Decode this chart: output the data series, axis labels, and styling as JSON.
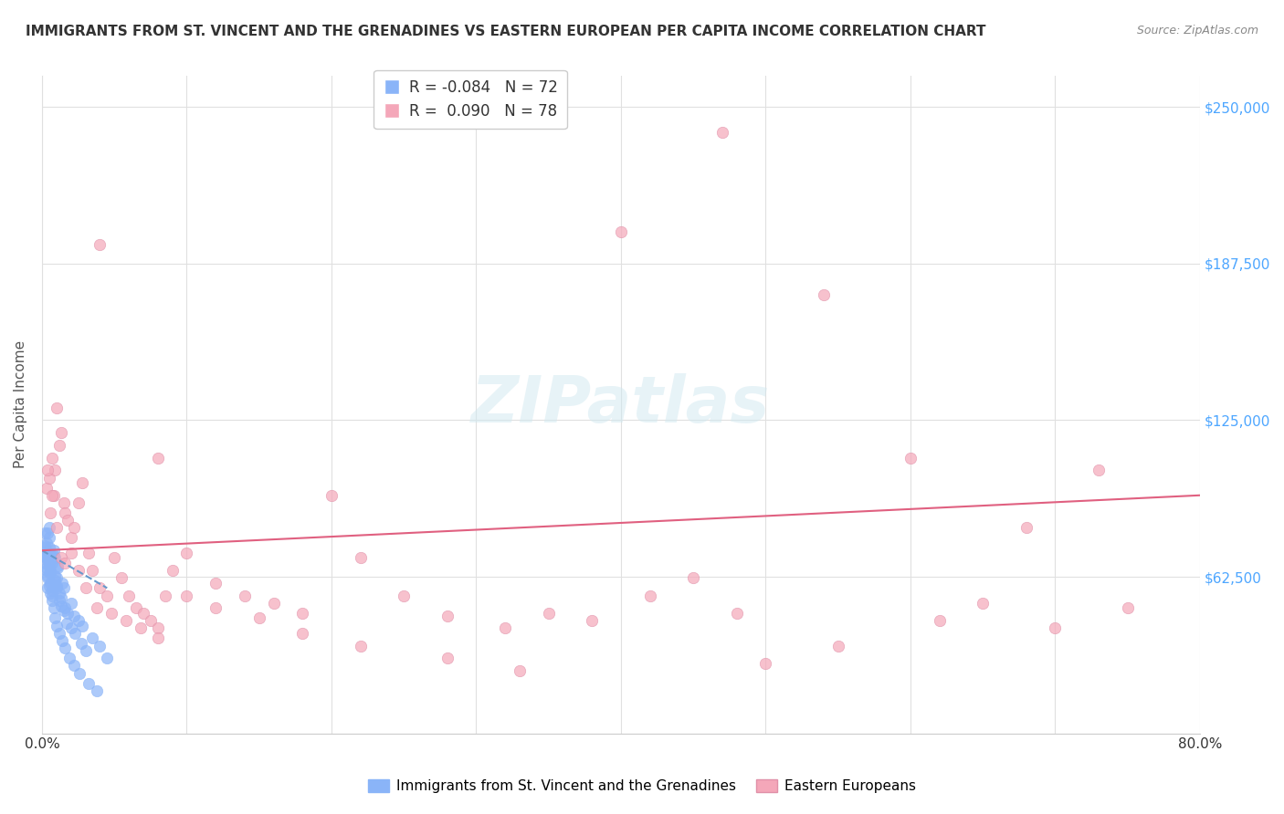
{
  "title": "IMMIGRANTS FROM ST. VINCENT AND THE GRENADINES VS EASTERN EUROPEAN PER CAPITA INCOME CORRELATION CHART",
  "source": "Source: ZipAtlas.com",
  "xlabel": "",
  "ylabel": "Per Capita Income",
  "xlim": [
    0.0,
    0.8
  ],
  "ylim": [
    0,
    262500
  ],
  "yticks": [
    0,
    62500,
    125000,
    187500,
    250000
  ],
  "ytick_labels": [
    "",
    "$62,500",
    "$125,000",
    "$187,500",
    "$250,000"
  ],
  "xticks": [
    0.0,
    0.1,
    0.2,
    0.3,
    0.4,
    0.5,
    0.6,
    0.7,
    0.8
  ],
  "xtick_labels": [
    "0.0%",
    "",
    "",
    "",
    "",
    "",
    "",
    "",
    "80.0%"
  ],
  "legend1_label": "Immigrants from St. Vincent and the Grenadines",
  "legend2_label": "Eastern Europeans",
  "R1": "-0.084",
  "N1": "72",
  "R2": "0.090",
  "N2": "78",
  "blue_color": "#8ab4f8",
  "pink_color": "#f4a7b9",
  "blue_line_color": "#6699cc",
  "pink_line_color": "#e06080",
  "watermark": "ZIPatlas",
  "title_color": "#333333",
  "axis_label_color": "#555555",
  "right_tick_color": "#4da6ff",
  "grid_color": "#e0e0e0",
  "blue_scatter_x": [
    0.001,
    0.002,
    0.002,
    0.003,
    0.003,
    0.004,
    0.004,
    0.004,
    0.005,
    0.005,
    0.005,
    0.006,
    0.006,
    0.007,
    0.007,
    0.008,
    0.008,
    0.009,
    0.009,
    0.01,
    0.01,
    0.011,
    0.012,
    0.013,
    0.014,
    0.015,
    0.016,
    0.018,
    0.02,
    0.022,
    0.025,
    0.028,
    0.035,
    0.04,
    0.045,
    0.005,
    0.003,
    0.002,
    0.004,
    0.006,
    0.007,
    0.008,
    0.009,
    0.01,
    0.011,
    0.012,
    0.013,
    0.015,
    0.017,
    0.02,
    0.023,
    0.027,
    0.03,
    0.001,
    0.002,
    0.003,
    0.004,
    0.005,
    0.006,
    0.007,
    0.008,
    0.009,
    0.01,
    0.012,
    0.014,
    0.016,
    0.019,
    0.022,
    0.026,
    0.032,
    0.038,
    0.005
  ],
  "blue_scatter_y": [
    72000,
    68000,
    75000,
    65000,
    70000,
    80000,
    62000,
    58000,
    74000,
    67000,
    72000,
    60000,
    65000,
    55000,
    68000,
    73000,
    58000,
    63000,
    70000,
    58000,
    62000,
    67000,
    56000,
    54000,
    60000,
    58000,
    50000,
    48000,
    52000,
    47000,
    45000,
    43000,
    38000,
    35000,
    30000,
    78000,
    76000,
    80000,
    69000,
    64000,
    57000,
    71000,
    61000,
    59000,
    66000,
    53000,
    51000,
    49000,
    44000,
    42000,
    40000,
    36000,
    33000,
    74000,
    71000,
    66000,
    63000,
    59000,
    56000,
    53000,
    50000,
    46000,
    43000,
    40000,
    37000,
    34000,
    30000,
    27000,
    24000,
    20000,
    17000,
    82000
  ],
  "pink_scatter_x": [
    0.003,
    0.005,
    0.006,
    0.007,
    0.008,
    0.009,
    0.01,
    0.012,
    0.013,
    0.015,
    0.016,
    0.018,
    0.02,
    0.022,
    0.025,
    0.028,
    0.032,
    0.035,
    0.04,
    0.045,
    0.05,
    0.055,
    0.06,
    0.065,
    0.07,
    0.075,
    0.08,
    0.085,
    0.09,
    0.1,
    0.12,
    0.14,
    0.16,
    0.18,
    0.2,
    0.22,
    0.25,
    0.28,
    0.32,
    0.35,
    0.38,
    0.42,
    0.45,
    0.48,
    0.5,
    0.55,
    0.62,
    0.65,
    0.7,
    0.75,
    0.004,
    0.007,
    0.01,
    0.013,
    0.016,
    0.02,
    0.025,
    0.03,
    0.038,
    0.048,
    0.058,
    0.068,
    0.08,
    0.1,
    0.12,
    0.15,
    0.18,
    0.22,
    0.28,
    0.33,
    0.4,
    0.47,
    0.54,
    0.6,
    0.68,
    0.73,
    0.04,
    0.08
  ],
  "pink_scatter_y": [
    98000,
    102000,
    88000,
    110000,
    95000,
    105000,
    130000,
    115000,
    120000,
    92000,
    88000,
    85000,
    78000,
    82000,
    92000,
    100000,
    72000,
    65000,
    58000,
    55000,
    70000,
    62000,
    55000,
    50000,
    48000,
    45000,
    42000,
    55000,
    65000,
    72000,
    60000,
    55000,
    52000,
    48000,
    95000,
    70000,
    55000,
    47000,
    42000,
    48000,
    45000,
    55000,
    62000,
    48000,
    28000,
    35000,
    45000,
    52000,
    42000,
    50000,
    105000,
    95000,
    82000,
    70000,
    68000,
    72000,
    65000,
    58000,
    50000,
    48000,
    45000,
    42000,
    38000,
    55000,
    50000,
    46000,
    40000,
    35000,
    30000,
    25000,
    200000,
    240000,
    175000,
    110000,
    82000,
    105000,
    195000,
    110000
  ],
  "blue_trend_x": [
    0.0,
    0.045
  ],
  "blue_trend_y": [
    73000,
    58000
  ],
  "pink_trend_x": [
    0.0,
    0.8
  ],
  "pink_trend_y": [
    73000,
    95000
  ]
}
